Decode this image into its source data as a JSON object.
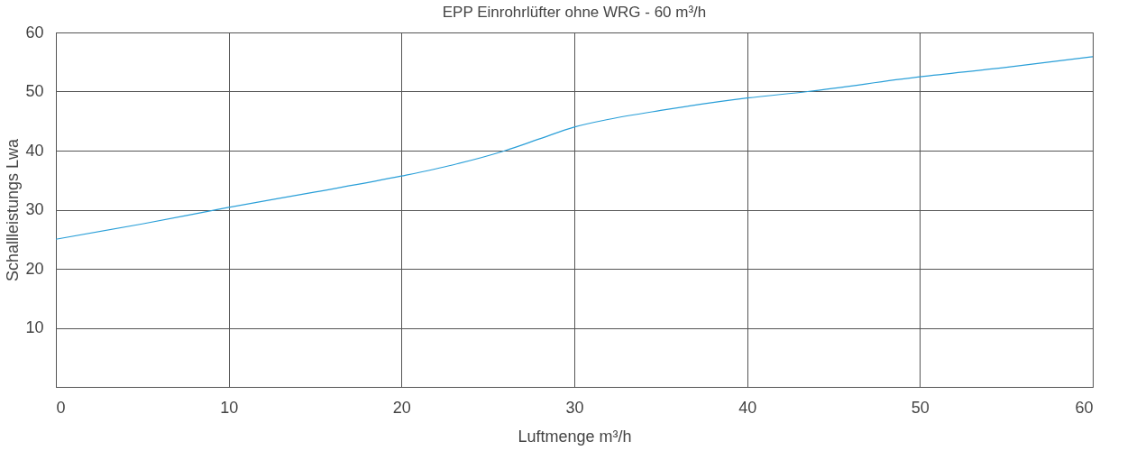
{
  "chart_data": {
    "type": "line",
    "title": "EPP Einrohrlüfter ohne WRG - 60 m³/h",
    "xlabel": "Luftmenge  m³/h",
    "ylabel": "Schallleistungs Lwa",
    "xlim": [
      0,
      60
    ],
    "xticks": [
      0,
      10,
      20,
      30,
      40,
      50,
      60
    ],
    "ylim": [
      0,
      60
    ],
    "yticks": [
      10,
      20,
      30,
      40,
      50,
      60
    ],
    "grid": true,
    "marker": "none",
    "line_style": "solid",
    "series": [
      {
        "color": "#2a9fd8",
        "x": [
          0,
          5,
          10,
          15,
          20,
          23,
          26,
          28,
          30,
          32,
          35,
          40,
          43.5,
          50,
          55,
          60
        ],
        "values": [
          25,
          27.6,
          30.4,
          33,
          35.7,
          37.6,
          40,
          42,
          44,
          45.3,
          46.8,
          48.9,
          50,
          52.5,
          54.1,
          55.9
        ]
      }
    ]
  }
}
